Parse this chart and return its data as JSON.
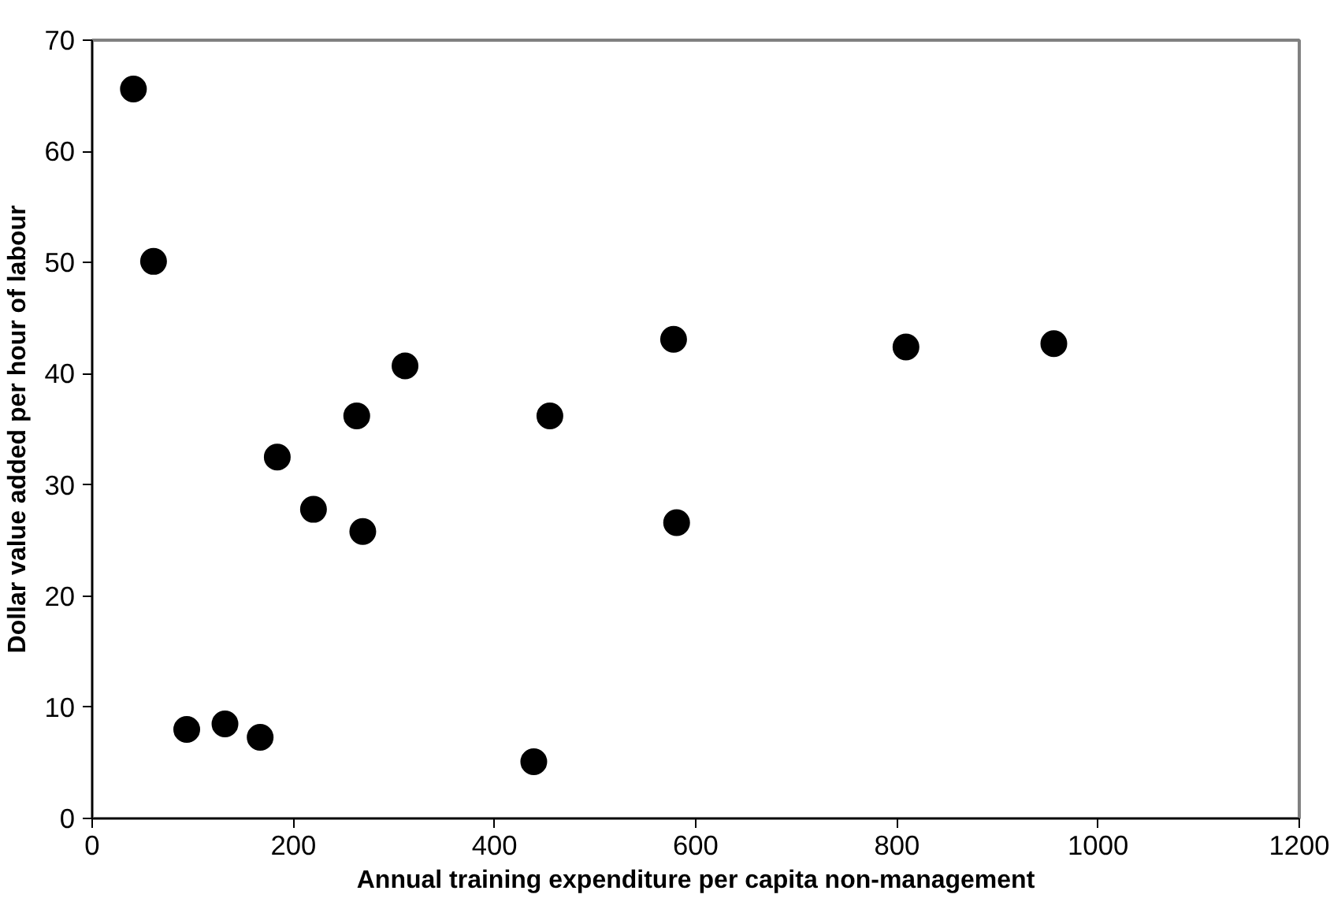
{
  "chart_data": {
    "type": "scatter",
    "xlabel": "Annual training expenditure per capita non-management",
    "ylabel": "Dollar value added per hour of labour",
    "x": [
      41,
      61,
      94,
      132,
      167,
      184,
      220,
      263,
      269,
      311,
      439,
      455,
      578,
      581,
      809,
      956
    ],
    "values": [
      65.6,
      50.1,
      8.0,
      8.5,
      7.3,
      32.5,
      27.8,
      36.2,
      25.8,
      40.7,
      5.1,
      36.2,
      43.1,
      26.6,
      42.4,
      42.7
    ],
    "color": "#000000",
    "marker": "circle",
    "xlim": [
      0,
      1200
    ],
    "xticks": [
      0,
      200,
      400,
      600,
      800,
      1000,
      1200
    ],
    "ylim": [
      0,
      70
    ],
    "yticks": [
      0,
      10,
      20,
      30,
      40,
      50,
      60,
      70
    ],
    "grid": false
  }
}
